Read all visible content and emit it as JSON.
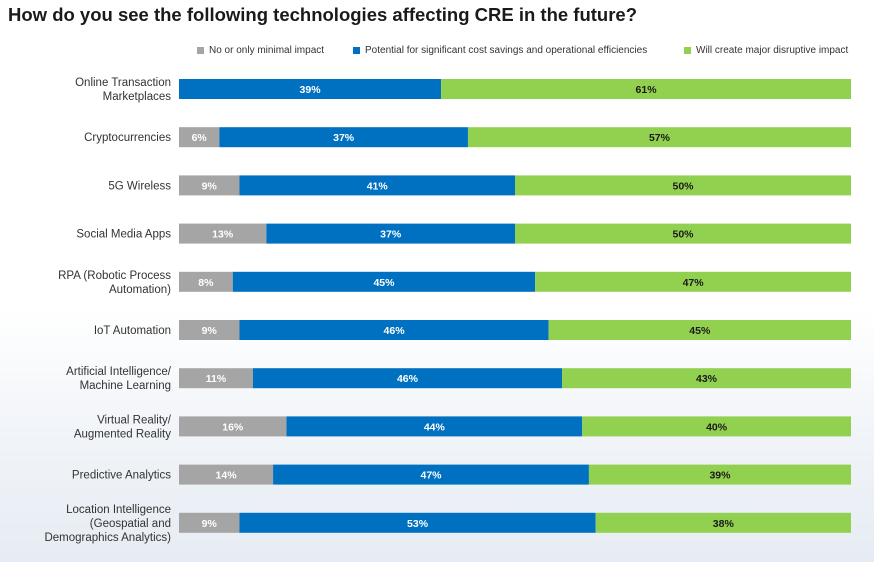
{
  "title": "How do you see the following technologies affecting CRE in the future?",
  "chart_data": {
    "type": "bar",
    "orientation": "horizontal",
    "stacked": true,
    "title": "How do you see the following technologies affecting CRE in the future?",
    "legend_position": "top-right",
    "categories": [
      [
        "Online Transaction",
        "Marketplaces"
      ],
      [
        "Cryptocurrencies"
      ],
      [
        "5G Wireless"
      ],
      [
        "Social Media Apps"
      ],
      [
        "RPA (Robotic Process",
        "Automation)"
      ],
      [
        "IoT Automation"
      ],
      [
        "Artificial Intelligence/",
        "Machine Learning"
      ],
      [
        "Virtual Reality/",
        "Augmented Reality"
      ],
      [
        "Predictive Analytics"
      ],
      [
        "Location Intelligence",
        "(Geospatial and",
        "Demographics Analytics)"
      ]
    ],
    "series": [
      {
        "name": "No or only minimal impact",
        "color": "#a5a5a5",
        "label_color": "#ffffff",
        "values": [
          0,
          6,
          9,
          13,
          8,
          9,
          11,
          16,
          14,
          9
        ]
      },
      {
        "name": "Potential for significant cost savings and operational efficiencies",
        "color": "#0070c0",
        "label_color": "#ffffff",
        "values": [
          39,
          37,
          41,
          37,
          45,
          46,
          46,
          44,
          47,
          53
        ]
      },
      {
        "name": "Will create major disruptive impact",
        "color": "#92d050",
        "label_color": "#1a1a1a",
        "values": [
          61,
          57,
          50,
          50,
          47,
          45,
          43,
          40,
          39,
          38
        ]
      }
    ],
    "value_suffix": "%"
  }
}
